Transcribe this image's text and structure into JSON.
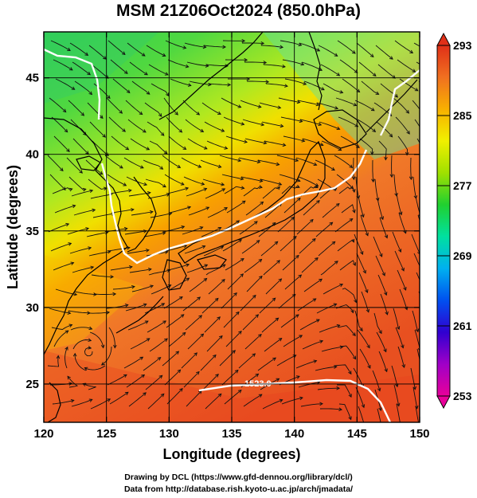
{
  "title": "MSM 21Z06Oct2024 (850.0hPa)",
  "map": {
    "lon_range": [
      120,
      150
    ],
    "lat_range": [
      22.5,
      48
    ],
    "x_ticks": [
      120,
      125,
      130,
      135,
      140,
      145,
      150
    ],
    "y_ticks": [
      25,
      30,
      35,
      40,
      45
    ],
    "xlabel": "Longitude (degrees)",
    "ylabel": "Latitude  (degrees)",
    "grid": true,
    "field_colormap": "blue-green-yellow-red temperature",
    "contour_label": "1523.0"
  },
  "colorbar": {
    "ticks": [
      293,
      285,
      277,
      269,
      261,
      253
    ],
    "min": 253,
    "max": 293,
    "colors": [
      "#e8009a",
      "#a000c8",
      "#3000d0",
      "#0050f0",
      "#00b0f0",
      "#00e0a0",
      "#20d030",
      "#a0e000",
      "#f0f000",
      "#f8b000",
      "#f07020",
      "#e03018"
    ]
  },
  "credits": {
    "line1": "Drawing by DCL (https://www.gfd-dennou.org/library/dcl/)",
    "line2": "Data from http://database.rish.kyoto-u.ac.jp/arch/jmadata/"
  }
}
